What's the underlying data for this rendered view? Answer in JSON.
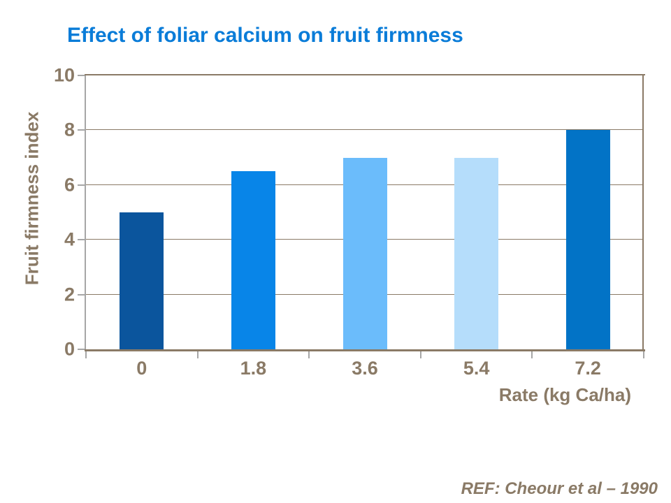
{
  "slide": {
    "title": "Effect of foliar calcium on fruit firmness",
    "reference": "REF: Cheour et al – 1990"
  },
  "chart_data": {
    "type": "bar",
    "title": "Effect of foliar calcium on fruit firmness",
    "categories": [
      "0",
      "1.8",
      "3.6",
      "5.4",
      "7.2"
    ],
    "values": [
      5,
      6.5,
      7,
      7,
      8
    ],
    "bar_colors": [
      "#0B559D",
      "#0885E8",
      "#6BBCFB",
      "#B5DDFB",
      "#0273C6"
    ],
    "xlabel": "Rate (kg Ca/ha)",
    "ylabel": "Fruit firmness index",
    "ylim": [
      0,
      10
    ],
    "yticks": [
      0,
      2,
      4,
      6,
      8,
      10
    ],
    "grid": true,
    "legend": false
  },
  "colors": {
    "title": "#0A7CD8",
    "axis_text": "#8A7A66",
    "gridline": "#8A7A66",
    "axis_frame": "#8A7A66",
    "value_axis_line": "#A6A6A6",
    "background": "#FFFFFF"
  }
}
